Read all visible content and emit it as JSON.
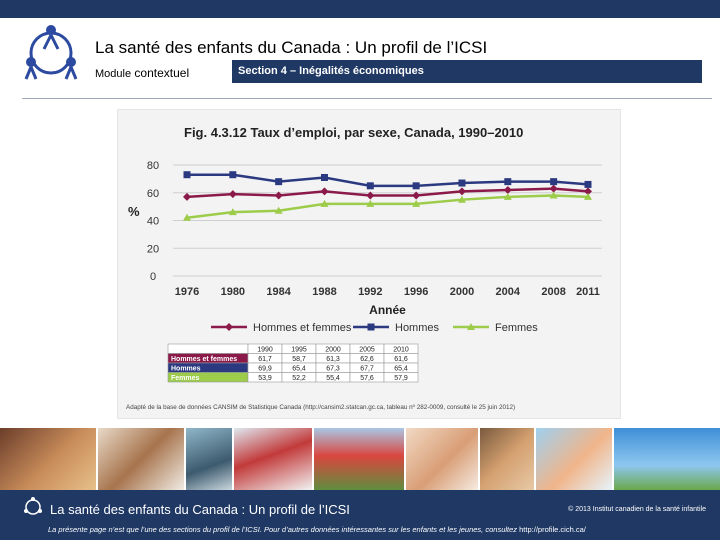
{
  "header": {
    "title": "La santé des enfants du Canada : Un profil de l’ICSI",
    "module_label": "Module",
    "module_value": "contextuel",
    "section": "Section 4 – Inégalités économiques"
  },
  "colors": {
    "navy": "#1f3864",
    "series_all": "#8b1a4a",
    "series_men": "#2b3a80",
    "series_women": "#9ccc4a"
  },
  "chart_data": {
    "type": "line",
    "title": "Fig. 4.3.12  Taux d’emploi, par sexe, Canada, 1990–2010",
    "xlabel": "Année",
    "ylabel": "%",
    "ylim": [
      0,
      80
    ],
    "yticks": [
      0,
      20,
      40,
      60,
      80
    ],
    "x": [
      1976,
      1980,
      1984,
      1988,
      1992,
      1996,
      2000,
      2004,
      2008,
      2011
    ],
    "series": [
      {
        "name": "Hommes et femmes",
        "values": [
          57,
          59,
          58,
          61,
          58,
          58,
          61,
          62,
          63,
          61
        ]
      },
      {
        "name": "Hommes",
        "values": [
          73,
          73,
          68,
          71,
          65,
          65,
          67,
          68,
          68,
          66
        ]
      },
      {
        "name": "Femmes",
        "values": [
          42,
          46,
          47,
          52,
          52,
          52,
          55,
          57,
          58,
          57
        ]
      }
    ],
    "legend": [
      "Hommes et femmes",
      "Hommes",
      "Femmes"
    ],
    "table": {
      "columns": [
        "",
        "1990",
        "1995",
        "2000",
        "2005",
        "2010"
      ],
      "rows": [
        {
          "label": "Hommes et femmes",
          "values": [
            "61,7",
            "58,7",
            "61,3",
            "62,6",
            "61,6"
          ]
        },
        {
          "label": "Hommes",
          "values": [
            "69,9",
            "65,4",
            "67,3",
            "67,7",
            "65,4"
          ]
        },
        {
          "label": "Femmes",
          "values": [
            "53,9",
            "52,2",
            "55,4",
            "57,6",
            "57,9"
          ]
        }
      ]
    },
    "source": "Adapté de la base de données CANSIM de Statistique Canada (http://cansim2.statcan.gc.ca, tableau nº 282-0009, consulté le 25 juin 2012)"
  },
  "footer": {
    "title": "La santé des enfants du Canada : Un profil de l’ICSI",
    "copyright": "© 2013   Institut canadien de la santé infantile",
    "note": "La présente page n’est que l’une des sections du profil de l’ICSI. Pour d’autres données intéressantes sur les enfants et les jeunes, consultez",
    "url": "http://profile.cich.ca/"
  }
}
